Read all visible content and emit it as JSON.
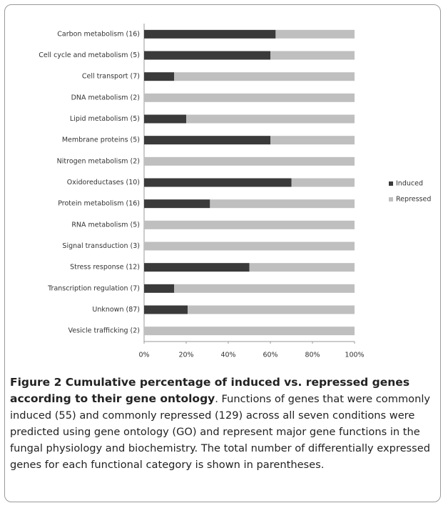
{
  "chart_data": {
    "type": "stacked-barh",
    "categories": [
      "Carbon metabolism (16)",
      "Cell cycle and metabolism (5)",
      "Cell transport (7)",
      "DNA metabolism (2)",
      "Lipid metabolism (5)",
      "Membrane proteins (5)",
      "Nitrogen metabolism (2)",
      "Oxidoreductases (10)",
      "Protein metabolism (16)",
      "RNA metabolism (5)",
      "Signal transduction (3)",
      "Stress response (12)",
      "Transcription regulation (7)",
      "Unknown (87)",
      "Vesicle trafficking (2)"
    ],
    "series": [
      {
        "name": "Induced",
        "color": "#3a3a3a",
        "values": [
          62.5,
          60,
          14.3,
          0,
          20,
          60,
          0,
          70,
          31.3,
          0,
          0,
          50,
          14.3,
          20.7,
          0
        ]
      },
      {
        "name": "Repressed",
        "color": "#bfbfbf",
        "values": [
          37.5,
          40,
          85.7,
          100,
          80,
          40,
          100,
          30,
          68.7,
          100,
          100,
          50,
          85.7,
          79.3,
          100
        ]
      }
    ],
    "xlim": [
      0,
      100
    ],
    "xticks": [
      {
        "value": 0,
        "label": "0%"
      },
      {
        "value": 20,
        "label": "20%"
      },
      {
        "value": 40,
        "label": "40%"
      },
      {
        "value": 60,
        "label": "60%"
      },
      {
        "value": 80,
        "label": "80%"
      },
      {
        "value": 100,
        "label": "100%"
      }
    ],
    "grid": false,
    "legend": "right"
  },
  "caption": {
    "title": "Figure 2 Cumulative percentage of induced vs. repressed genes according to their gene ontology",
    "text": ". Functions of genes that were commonly induced (55) and commonly repressed (129) across all seven conditions were predicted using gene ontology (GO) and represent major gene functions in the fungal physiology and biochemistry. The total number of differentially expressed genes for each functional category is shown in parentheses."
  }
}
